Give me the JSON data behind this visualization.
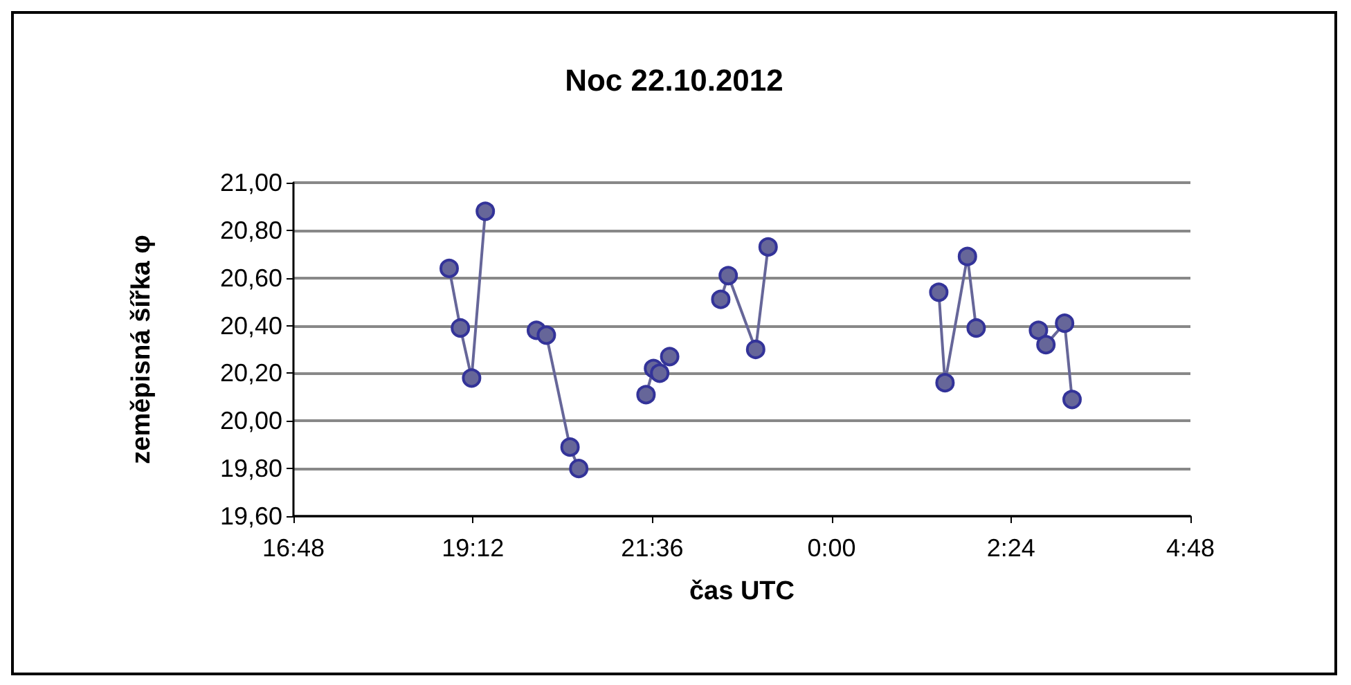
{
  "chart_data": {
    "type": "line",
    "title": "Noc 22.10.2012",
    "xlabel": "čas UTC",
    "ylabel": "zeměpisná šířka φ",
    "series": [
      {
        "color": "#666699",
        "x": [
          "2012-10-22T18:53",
          "2012-10-22T19:02",
          "2012-10-22T19:11",
          "2012-10-22T19:22"
        ],
        "values": [
          20.64,
          20.39,
          20.18,
          20.88
        ]
      },
      {
        "color": "#666699",
        "x": [
          "2012-10-22T20:03",
          "2012-10-22T20:11",
          "2012-10-22T20:30",
          "2012-10-22T20:37"
        ],
        "values": [
          20.38,
          20.36,
          19.89,
          19.8
        ]
      },
      {
        "color": "#666699",
        "x": [
          "2012-10-22T21:31",
          "2012-10-22T21:37",
          "2012-10-22T21:42",
          "2012-10-22T21:50"
        ],
        "values": [
          20.11,
          20.22,
          20.2,
          20.27
        ]
      },
      {
        "color": "#666699",
        "x": [
          "2012-10-22T22:31",
          "2012-10-22T22:37",
          "2012-10-22T22:59",
          "2012-10-22T23:09"
        ],
        "values": [
          20.51,
          20.61,
          20.3,
          20.73
        ]
      },
      {
        "color": "#666699",
        "x": [
          "2012-10-23T01:26",
          "2012-10-23T01:31",
          "2012-10-23T01:49",
          "2012-10-23T01:56"
        ],
        "values": [
          20.54,
          20.16,
          20.69,
          20.39
        ]
      },
      {
        "color": "#666699",
        "x": [
          "2012-10-23T02:46",
          "2012-10-23T02:52",
          "2012-10-23T03:07",
          "2012-10-23T03:13"
        ],
        "values": [
          20.38,
          20.32,
          20.41,
          20.09
        ]
      }
    ],
    "xlim": [
      "2012-10-22T16:48",
      "2012-10-23T04:48"
    ],
    "xticks": [
      {
        "value": "2012-10-22T16:48",
        "label": "16:48"
      },
      {
        "value": "2012-10-22T19:12",
        "label": "19:12"
      },
      {
        "value": "2012-10-22T21:36",
        "label": "21:36"
      },
      {
        "value": "2012-10-23T00:00",
        "label": "0:00"
      },
      {
        "value": "2012-10-23T02:24",
        "label": "2:24"
      },
      {
        "value": "2012-10-23T04:48",
        "label": "4:48"
      }
    ],
    "ylim": [
      19.6,
      21
    ],
    "yticks": [
      {
        "value": 19.6,
        "label": "19,60"
      },
      {
        "value": 19.8,
        "label": "19,80"
      },
      {
        "value": 20,
        "label": "20,00"
      },
      {
        "value": 20.2,
        "label": "20,20"
      },
      {
        "value": 20.4,
        "label": "20,40"
      },
      {
        "value": 20.6,
        "label": "20,60"
      },
      {
        "value": 20.8,
        "label": "20,80"
      },
      {
        "value": 21,
        "label": "21,00"
      }
    ],
    "grid": "y",
    "marker": "circle",
    "line_style": "solid"
  }
}
